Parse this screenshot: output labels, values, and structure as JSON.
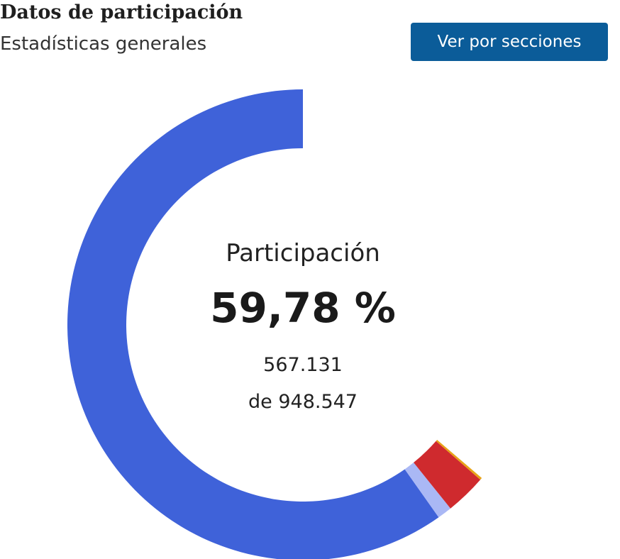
{
  "header": {
    "title": "Datos de participación",
    "subtitle": "Estadísticas generales",
    "button_label": "Ver por secciones"
  },
  "colors": {
    "button": "#0b5c99",
    "accent_blue": "#3f62d9"
  },
  "chart_data": {
    "type": "pie",
    "variant": "donut",
    "segments": [
      {
        "value": 59.78,
        "color": "#3f62d9"
      },
      {
        "value": 1.0,
        "color": "#aab8f5"
      },
      {
        "value": 2.8,
        "color": "#cf2a2e"
      },
      {
        "value": 0.15,
        "color": "#e8a317"
      }
    ],
    "center": {
      "label": "Participación",
      "value": "59,78 %",
      "count": "567.131",
      "total": "de 948.547"
    }
  }
}
